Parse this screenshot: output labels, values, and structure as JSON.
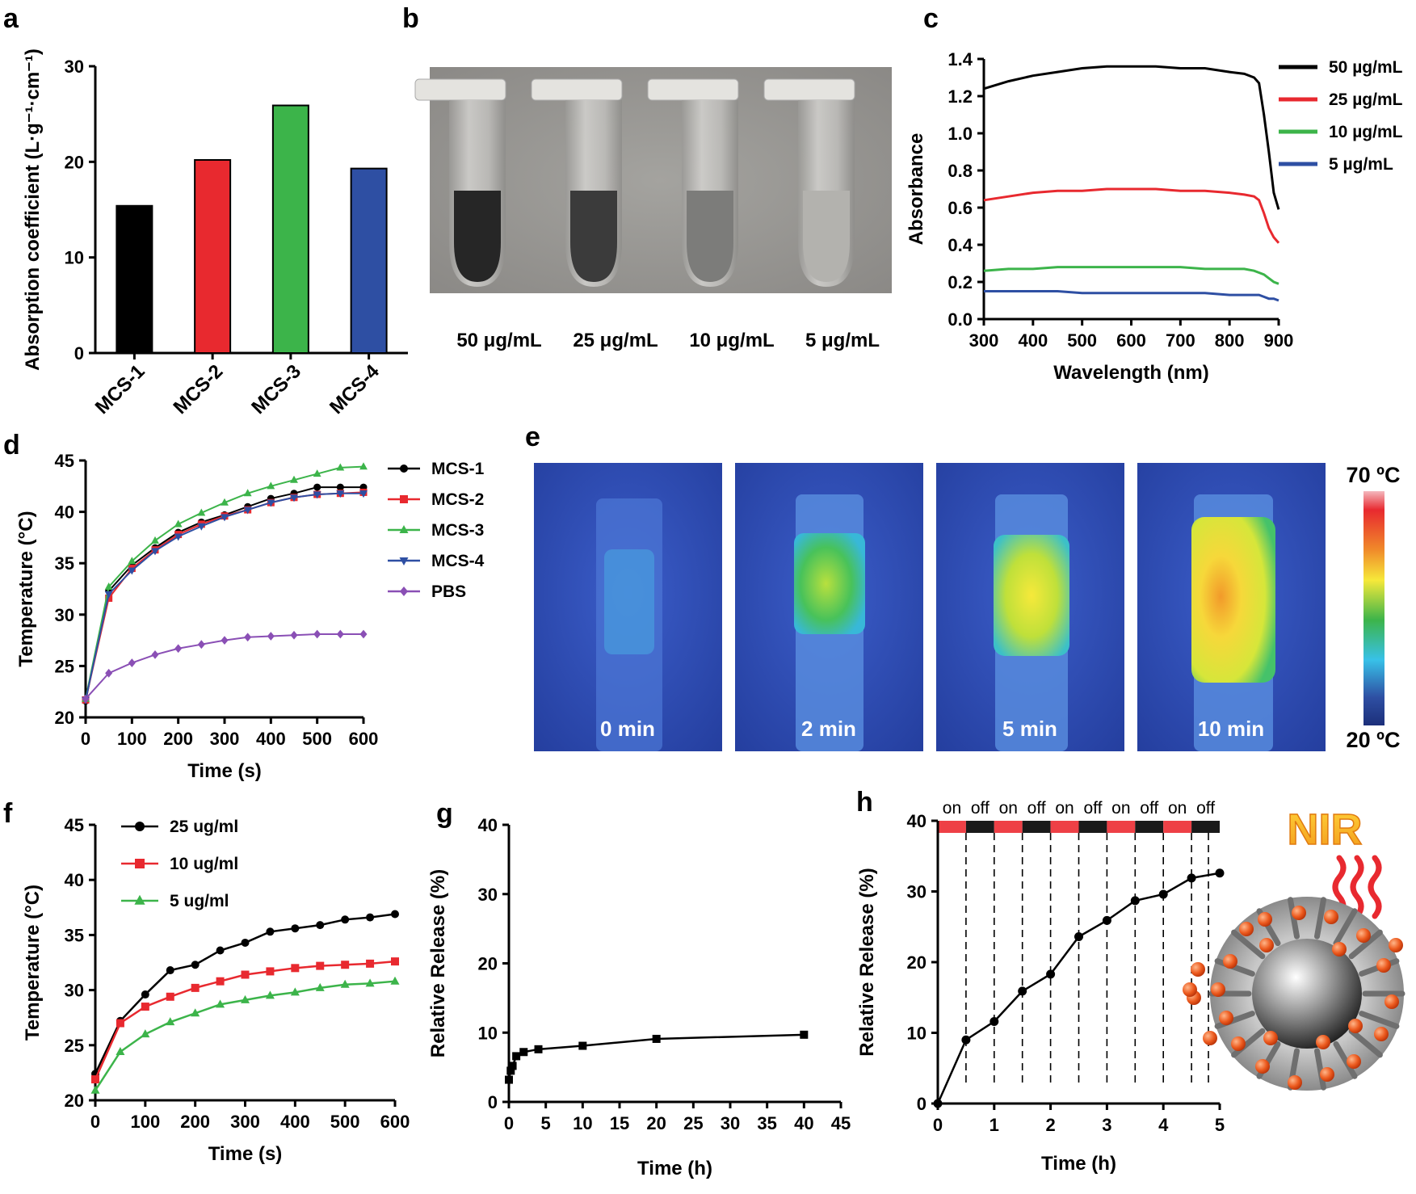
{
  "panel_labels": [
    "a",
    "b",
    "c",
    "d",
    "e",
    "f",
    "g",
    "h"
  ],
  "colors": {
    "black": "#000000",
    "red": "#e8292f",
    "green": "#3cb44a",
    "blue": "#2e4fa3",
    "purple": "#8a4fb5",
    "onbar": "#ee4046",
    "offbar": "#1a1a1a"
  },
  "chart_data": [
    {
      "panel": "a",
      "type": "bar",
      "categories": [
        "MCS-1",
        "MCS-2",
        "MCS-3",
        "MCS-4"
      ],
      "values": [
        15.4,
        20.2,
        25.9,
        19.3
      ],
      "colors": [
        "#000000",
        "#e8292f",
        "#3cb44a",
        "#2e4fa3"
      ],
      "ylabel": "Absorption coefficient (L·g⁻¹·cm⁻¹)",
      "ylim": [
        0,
        30
      ],
      "yticks": [
        0,
        10,
        20,
        30
      ]
    },
    {
      "panel": "c",
      "type": "line",
      "xlabel": "Wavelength (nm)",
      "ylabel": "Absorbance",
      "xlim": [
        300,
        900
      ],
      "ylim": [
        0,
        1.4
      ],
      "xticks": [
        300,
        400,
        500,
        600,
        700,
        800,
        900
      ],
      "yticks": [
        0.0,
        0.2,
        0.4,
        0.6,
        0.8,
        1.0,
        1.2,
        1.4
      ],
      "legend_position": "top-right",
      "x": [
        300,
        350,
        400,
        450,
        500,
        550,
        600,
        650,
        700,
        750,
        800,
        830,
        850,
        860,
        870,
        880,
        890,
        900
      ],
      "series": [
        {
          "name": "50 µg/mL",
          "color": "#000000",
          "values": [
            1.24,
            1.28,
            1.31,
            1.33,
            1.35,
            1.36,
            1.36,
            1.36,
            1.35,
            1.35,
            1.33,
            1.32,
            1.3,
            1.27,
            1.1,
            0.9,
            0.68,
            0.59
          ]
        },
        {
          "name": "25 µg/mL",
          "color": "#e8292f",
          "values": [
            0.64,
            0.66,
            0.68,
            0.69,
            0.69,
            0.7,
            0.7,
            0.7,
            0.69,
            0.69,
            0.68,
            0.67,
            0.66,
            0.64,
            0.57,
            0.49,
            0.44,
            0.41
          ]
        },
        {
          "name": "10 µg/mL",
          "color": "#3cb44a",
          "values": [
            0.26,
            0.27,
            0.27,
            0.28,
            0.28,
            0.28,
            0.28,
            0.28,
            0.28,
            0.27,
            0.27,
            0.27,
            0.26,
            0.25,
            0.24,
            0.22,
            0.2,
            0.19
          ]
        },
        {
          "name": "5 µg/mL",
          "color": "#2e4fa3",
          "values": [
            0.15,
            0.15,
            0.15,
            0.15,
            0.14,
            0.14,
            0.14,
            0.14,
            0.14,
            0.14,
            0.13,
            0.13,
            0.13,
            0.13,
            0.12,
            0.11,
            0.11,
            0.1
          ]
        }
      ]
    },
    {
      "panel": "d",
      "type": "line",
      "xlabel": "Time (s)",
      "ylabel": "Temperature (°C)",
      "xlim": [
        0,
        600
      ],
      "ylim": [
        20,
        45
      ],
      "xticks": [
        0,
        100,
        200,
        300,
        400,
        500,
        600
      ],
      "yticks": [
        20,
        25,
        30,
        35,
        40,
        45
      ],
      "legend_position": "right",
      "x": [
        0,
        50,
        100,
        150,
        200,
        250,
        300,
        350,
        400,
        450,
        500,
        550,
        600
      ],
      "series": [
        {
          "name": "MCS-1",
          "color": "#000000",
          "marker": "circle",
          "values": [
            21.6,
            32.3,
            34.8,
            36.5,
            38.0,
            39.0,
            39.7,
            40.5,
            41.3,
            41.8,
            42.4,
            42.4,
            42.4
          ]
        },
        {
          "name": "MCS-2",
          "color": "#e8292f",
          "marker": "square",
          "values": [
            21.7,
            31.6,
            34.5,
            36.3,
            37.8,
            38.8,
            39.6,
            40.2,
            40.9,
            41.4,
            41.7,
            41.8,
            41.9
          ]
        },
        {
          "name": "MCS-3",
          "color": "#3cb44a",
          "marker": "triangle-up",
          "values": [
            21.8,
            32.7,
            35.2,
            37.2,
            38.8,
            39.9,
            40.9,
            41.8,
            42.5,
            43.1,
            43.7,
            44.3,
            44.4
          ]
        },
        {
          "name": "MCS-4",
          "color": "#2e4fa3",
          "marker": "triangle-down",
          "values": [
            21.7,
            32.0,
            34.3,
            36.2,
            37.6,
            38.6,
            39.5,
            40.2,
            40.9,
            41.4,
            41.7,
            41.8,
            41.8
          ]
        },
        {
          "name": "PBS",
          "color": "#8a4fb5",
          "marker": "diamond",
          "values": [
            21.8,
            24.3,
            25.3,
            26.1,
            26.7,
            27.1,
            27.5,
            27.8,
            27.9,
            28.0,
            28.1,
            28.1,
            28.1
          ]
        }
      ]
    },
    {
      "panel": "f",
      "type": "line",
      "xlabel": "Time (s)",
      "ylabel": "Temperature (°C)",
      "xlim": [
        0,
        600
      ],
      "ylim": [
        20,
        45
      ],
      "xticks": [
        0,
        100,
        200,
        300,
        400,
        500,
        600
      ],
      "yticks": [
        20,
        25,
        30,
        35,
        40,
        45
      ],
      "legend_position": "top-left",
      "x": [
        0,
        50,
        100,
        150,
        200,
        250,
        300,
        350,
        400,
        450,
        500,
        550,
        600
      ],
      "series": [
        {
          "name": "25 ug/ml",
          "color": "#000000",
          "marker": "circle",
          "values": [
            22.4,
            27.2,
            29.6,
            31.8,
            32.3,
            33.6,
            34.3,
            35.3,
            35.6,
            35.9,
            36.4,
            36.6,
            36.9
          ]
        },
        {
          "name": "10 ug/ml",
          "color": "#e8292f",
          "marker": "square",
          "values": [
            21.9,
            27.0,
            28.5,
            29.4,
            30.2,
            30.8,
            31.4,
            31.7,
            32.0,
            32.2,
            32.3,
            32.4,
            32.6
          ]
        },
        {
          "name": "5 ug/ml",
          "color": "#3cb44a",
          "marker": "triangle-up",
          "values": [
            20.9,
            24.4,
            26.0,
            27.1,
            27.9,
            28.7,
            29.1,
            29.5,
            29.8,
            30.2,
            30.5,
            30.6,
            30.8
          ]
        }
      ]
    },
    {
      "panel": "g",
      "type": "line",
      "xlabel": "Time (h)",
      "ylabel": "Relative Release (%)",
      "xlim": [
        0,
        45
      ],
      "ylim": [
        0,
        40
      ],
      "xticks": [
        0,
        5,
        10,
        15,
        20,
        25,
        30,
        35,
        40,
        45
      ],
      "yticks": [
        0,
        10,
        20,
        30,
        40
      ],
      "x": [
        0,
        0.25,
        0.5,
        1,
        2,
        4,
        10,
        20,
        40
      ],
      "series": [
        {
          "name": "release",
          "color": "#000000",
          "marker": "square",
          "values": [
            3.2,
            4.5,
            5.2,
            6.6,
            7.2,
            7.6,
            8.1,
            9.1,
            9.7
          ]
        }
      ]
    },
    {
      "panel": "h",
      "type": "line",
      "xlabel": "Time (h)",
      "ylabel": "Relative Release (%)",
      "xlim": [
        0,
        5
      ],
      "ylim": [
        0,
        40
      ],
      "xticks": [
        0,
        1,
        2,
        3,
        4,
        5
      ],
      "yticks": [
        0,
        10,
        20,
        30,
        40
      ],
      "x": [
        0,
        0.5,
        1,
        1.5,
        2,
        2.5,
        3,
        3.5,
        4,
        4.5,
        5
      ],
      "series": [
        {
          "name": "release",
          "color": "#000000",
          "marker": "circle",
          "values": [
            0,
            9.0,
            11.6,
            15.9,
            18.3,
            23.6,
            25.9,
            28.7,
            29.6,
            31.9,
            32.6
          ]
        }
      ],
      "nir_bar": [
        "on",
        "off",
        "on",
        "off",
        "on",
        "off",
        "on",
        "off",
        "on",
        "off"
      ],
      "dashed_lines_at": [
        0.5,
        1,
        1.5,
        2,
        2.5,
        3,
        3.5,
        4,
        4.5,
        4.8
      ]
    }
  ],
  "panel_b": {
    "labels": [
      "50 μg/mL",
      "25 μg/mL",
      "10 μg/mL",
      "5 μg/mL"
    ]
  },
  "panel_e": {
    "labels": [
      "0 min",
      "2 min",
      "5 min",
      "10 min"
    ],
    "scale_max": "70 ºC",
    "scale_min": "20 ºC"
  },
  "panel_h_graphic": {
    "label": "NIR"
  }
}
